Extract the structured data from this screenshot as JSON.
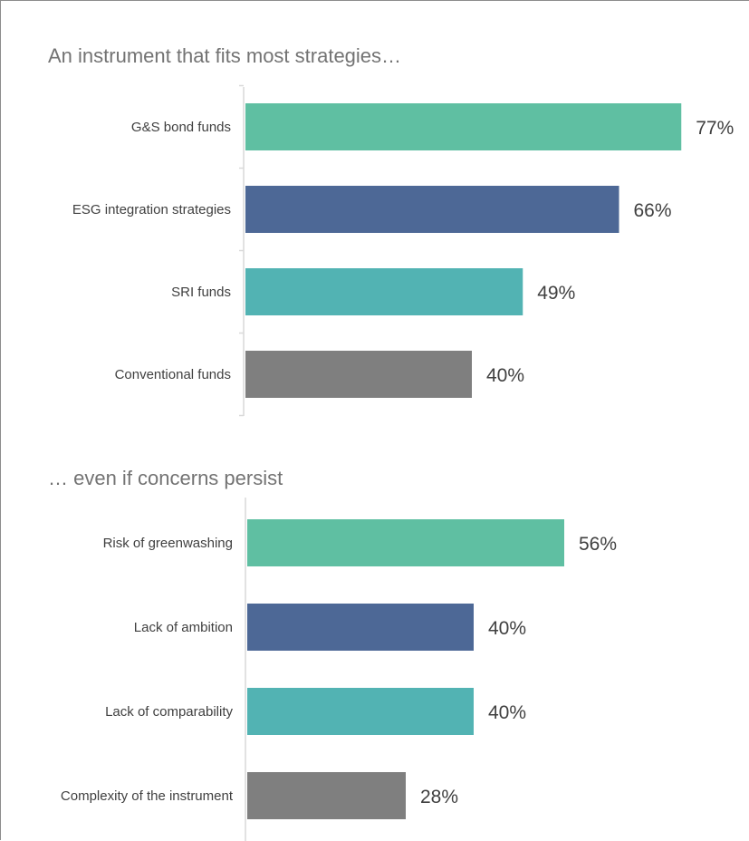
{
  "chart_data": [
    {
      "type": "bar",
      "orientation": "horizontal",
      "title": "An instrument that fits most strategies…",
      "categories": [
        "G&S bond funds",
        "ESG integration strategies",
        "SRI funds",
        "Conventional funds"
      ],
      "values": [
        77,
        66,
        49,
        40
      ],
      "value_labels": [
        "77%",
        "66%",
        "49%",
        "40%"
      ],
      "unit": "%",
      "xlim": [
        0,
        100
      ],
      "bar_colors": [
        "#5fbfa2",
        "#4d6896",
        "#52b3b3",
        "#7f7f7f"
      ],
      "grid": false,
      "legend": "none"
    },
    {
      "type": "bar",
      "orientation": "horizontal",
      "title": "… even if concerns persist",
      "categories": [
        "Risk of greenwashing",
        "Lack of ambition",
        "Lack of comparability",
        "Complexity of the instrument"
      ],
      "values": [
        56,
        40,
        40,
        28
      ],
      "value_labels": [
        "56%",
        "40%",
        "40%",
        "28%"
      ],
      "unit": "%",
      "xlim": [
        0,
        100
      ],
      "bar_colors": [
        "#5fbfa2",
        "#4d6896",
        "#52b3b3",
        "#7f7f7f"
      ],
      "grid": false,
      "legend": "none"
    }
  ],
  "colors": {
    "axis": "#d9d9d9",
    "text": "#404040",
    "title": "#737373",
    "frame": "#8c8c8c"
  }
}
